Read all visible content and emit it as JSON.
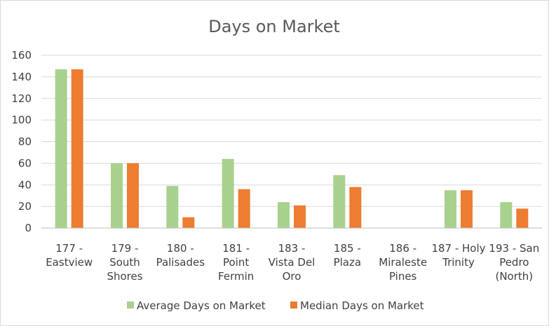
{
  "chart_data": {
    "type": "bar",
    "title": "Days on Market",
    "categories": [
      [
        "177 -",
        "Eastview"
      ],
      [
        "179 -",
        "South",
        "Shores"
      ],
      [
        "180 -",
        "Palisades"
      ],
      [
        "181 -",
        "Point",
        "Fermin"
      ],
      [
        "183 -",
        "Vista Del",
        "Oro"
      ],
      [
        "185 -",
        "Plaza"
      ],
      [
        "186 -",
        "Miraleste",
        "Pines"
      ],
      [
        "187 - Holy",
        "Trinity"
      ],
      [
        "193 - San",
        "Pedro",
        "(North)"
      ]
    ],
    "series": [
      {
        "name": "Average Days on Market",
        "color": "#a9d18e",
        "values": [
          147,
          60,
          39,
          64,
          24,
          49,
          0,
          35,
          24
        ]
      },
      {
        "name": "Median Days on Market",
        "color": "#ed7d31",
        "values": [
          147,
          60,
          10,
          36,
          21,
          38,
          0,
          35,
          18
        ]
      }
    ],
    "yticks": [
      0,
      20,
      40,
      60,
      80,
      100,
      120,
      140,
      160
    ],
    "ylim": [
      0,
      160
    ],
    "grid": true,
    "legend": "bottom"
  }
}
